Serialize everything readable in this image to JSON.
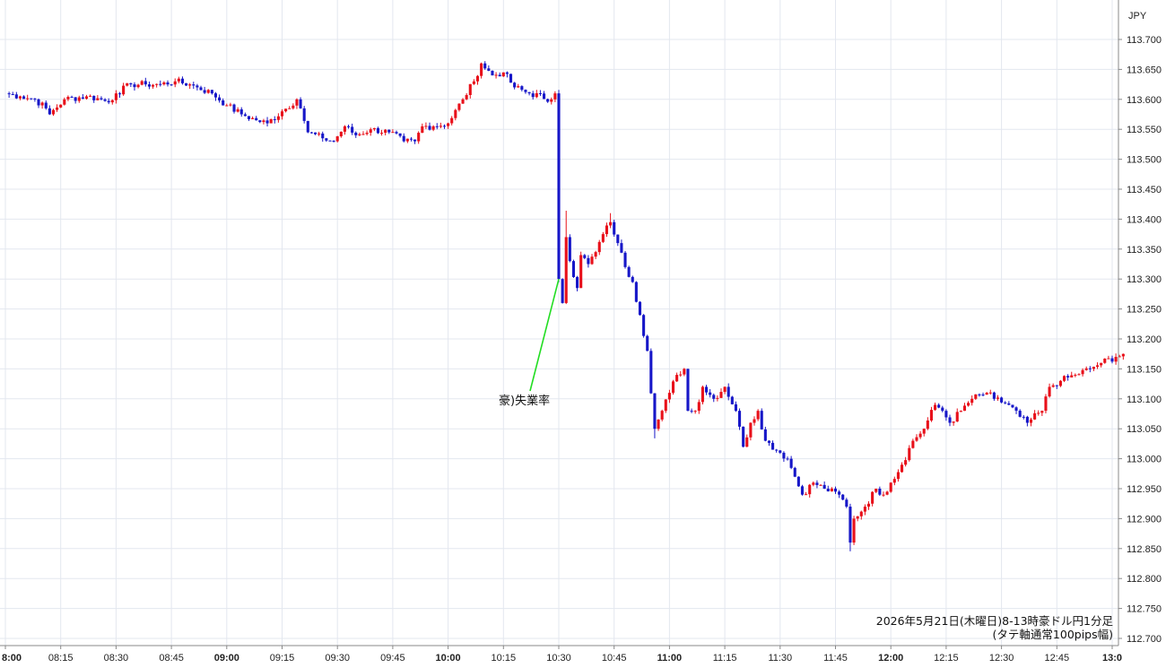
{
  "chart_data": {
    "type": "candlestick",
    "currency_label": "JPY",
    "ylim": [
      112.7,
      113.7
    ],
    "y_ticks": [
      "113.700",
      "113.650",
      "113.600",
      "113.550",
      "113.500",
      "113.450",
      "113.400",
      "113.350",
      "113.300",
      "113.250",
      "113.200",
      "113.150",
      "113.100",
      "113.050",
      "113.000",
      "112.950",
      "112.900",
      "112.850",
      "112.800",
      "112.750",
      "112.700"
    ],
    "x_ticks": [
      "8:00",
      "08:15",
      "08:30",
      "08:45",
      "09:00",
      "09:15",
      "09:30",
      "09:45",
      "10:00",
      "10:15",
      "10:30",
      "10:45",
      "11:00",
      "11:15",
      "11:30",
      "11:45",
      "12:00",
      "12:15",
      "12:30",
      "12:45",
      "13:0"
    ],
    "bold_x_ticks": [
      "8:00",
      "09:00",
      "10:00",
      "11:00",
      "12:00",
      "13:0"
    ],
    "x_range_minutes": [
      0,
      303
    ],
    "grid": true,
    "candle_colors": {
      "up": "#e8101a",
      "down": "#1717c8"
    },
    "annotation": {
      "text": "豪)失業率",
      "time_minutes": 150,
      "price": 113.3,
      "line_color": "#22dd22"
    },
    "caption_lines": [
      "2026年5月21日(木曜日)8-13時豪ドル円1分足",
      "(タテ軸通常100pips幅)"
    ],
    "anchors": [
      [
        0,
        113.61
      ],
      [
        4,
        113.605
      ],
      [
        8,
        113.6
      ],
      [
        11,
        113.585
      ],
      [
        12,
        113.575
      ],
      [
        16,
        113.6
      ],
      [
        22,
        113.605
      ],
      [
        26,
        113.6
      ],
      [
        28,
        113.595
      ],
      [
        30,
        113.61
      ],
      [
        34,
        113.625
      ],
      [
        38,
        113.625
      ],
      [
        42,
        113.625
      ],
      [
        46,
        113.63
      ],
      [
        50,
        113.625
      ],
      [
        52,
        113.62
      ],
      [
        56,
        113.61
      ],
      [
        60,
        113.59
      ],
      [
        64,
        113.575
      ],
      [
        68,
        113.565
      ],
      [
        71,
        113.56
      ],
      [
        75,
        113.58
      ],
      [
        79,
        113.6
      ],
      [
        80,
        113.585
      ],
      [
        82,
        113.545
      ],
      [
        86,
        113.535
      ],
      [
        89,
        113.53
      ],
      [
        92,
        113.555
      ],
      [
        95,
        113.54
      ],
      [
        99,
        113.55
      ],
      [
        104,
        113.545
      ],
      [
        108,
        113.53
      ],
      [
        111,
        113.53
      ],
      [
        113,
        113.555
      ],
      [
        116,
        113.555
      ],
      [
        120,
        113.56
      ],
      [
        124,
        113.6
      ],
      [
        127,
        113.63
      ],
      [
        129,
        113.66
      ],
      [
        132,
        113.64
      ],
      [
        135,
        113.645
      ],
      [
        138,
        113.62
      ],
      [
        142,
        113.61
      ],
      [
        148,
        113.6
      ],
      [
        149,
        113.61
      ],
      [
        150,
        113.3
      ],
      [
        151,
        113.26
      ],
      [
        152,
        113.37
      ],
      [
        153,
        113.33
      ],
      [
        155,
        113.285
      ],
      [
        156,
        113.34
      ],
      [
        158,
        113.325
      ],
      [
        160,
        113.345
      ],
      [
        162,
        113.375
      ],
      [
        164,
        113.395
      ],
      [
        166,
        113.36
      ],
      [
        168,
        113.32
      ],
      [
        170,
        113.295
      ],
      [
        172,
        113.24
      ],
      [
        174,
        113.18
      ],
      [
        176,
        113.05
      ],
      [
        178,
        113.08
      ],
      [
        180,
        113.11
      ],
      [
        182,
        113.14
      ],
      [
        184,
        113.15
      ],
      [
        185,
        113.08
      ],
      [
        187,
        113.08
      ],
      [
        189,
        113.12
      ],
      [
        192,
        113.1
      ],
      [
        195,
        113.12
      ],
      [
        198,
        113.08
      ],
      [
        200,
        113.02
      ],
      [
        202,
        113.06
      ],
      [
        204,
        113.08
      ],
      [
        206,
        113.03
      ],
      [
        210,
        113.01
      ],
      [
        212,
        113.0
      ],
      [
        214,
        112.97
      ],
      [
        216,
        112.94
      ],
      [
        219,
        112.96
      ],
      [
        222,
        112.95
      ],
      [
        226,
        112.94
      ],
      [
        228,
        112.92
      ],
      [
        229,
        112.86
      ],
      [
        230,
        112.9
      ],
      [
        233,
        112.92
      ],
      [
        236,
        112.95
      ],
      [
        238,
        112.94
      ],
      [
        240,
        112.96
      ],
      [
        243,
        112.99
      ],
      [
        246,
        113.03
      ],
      [
        249,
        113.05
      ],
      [
        252,
        113.09
      ],
      [
        254,
        113.08
      ],
      [
        256,
        113.06
      ],
      [
        259,
        113.08
      ],
      [
        262,
        113.1
      ],
      [
        266,
        113.11
      ],
      [
        268,
        113.1
      ],
      [
        272,
        113.09
      ],
      [
        275,
        113.07
      ],
      [
        277,
        113.06
      ],
      [
        281,
        113.08
      ],
      [
        283,
        113.12
      ],
      [
        286,
        113.13
      ],
      [
        290,
        113.14
      ],
      [
        294,
        113.15
      ],
      [
        297,
        113.16
      ],
      [
        301,
        113.17
      ],
      [
        303,
        113.175
      ]
    ]
  }
}
